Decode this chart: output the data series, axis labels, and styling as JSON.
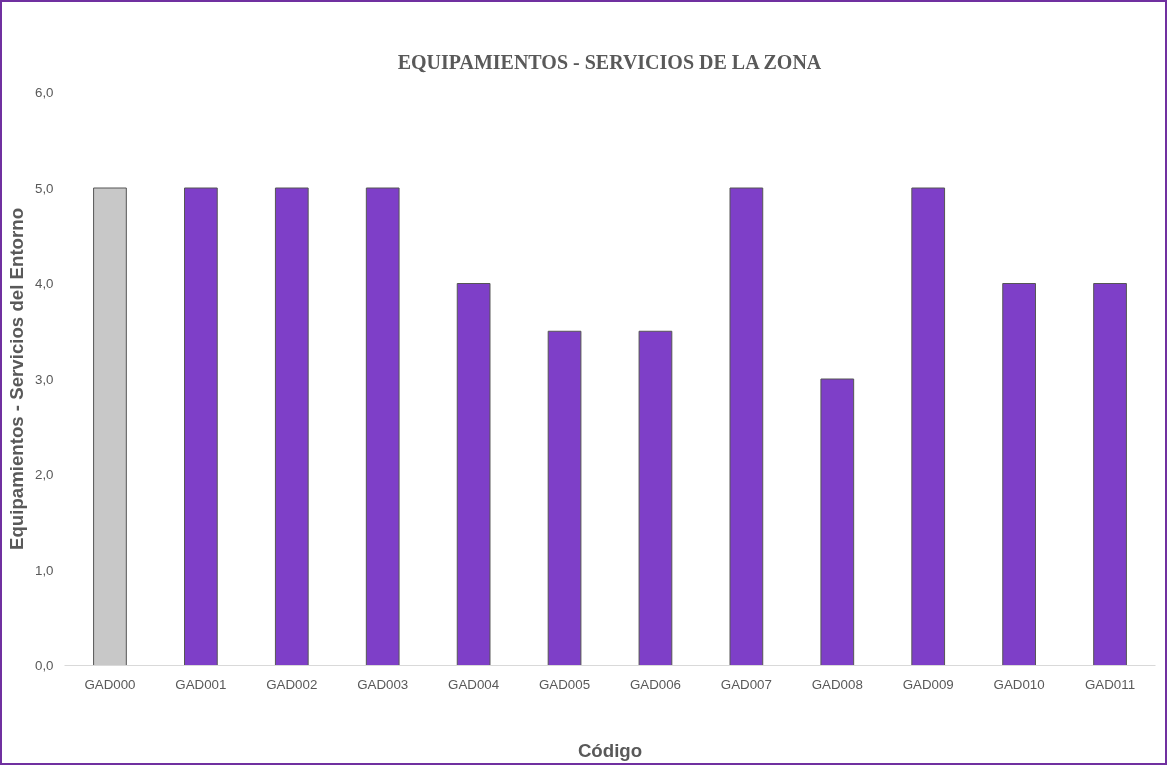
{
  "chart_data": {
    "type": "bar",
    "title": "EQUIPAMIENTOS - SERVICIOS DE LA ZONA",
    "xlabel": "Código",
    "ylabel": "Equipamientos - Servicios del Entorno",
    "categories": [
      "GAD000",
      "GAD001",
      "GAD002",
      "GAD003",
      "GAD004",
      "GAD005",
      "GAD006",
      "GAD007",
      "GAD008",
      "GAD009",
      "GAD010",
      "GAD011"
    ],
    "values": [
      5,
      5,
      5,
      5,
      4,
      3.5,
      3.5,
      5,
      3,
      5,
      4,
      4
    ],
    "colors": [
      "#c8c8c8",
      "#7e3fc8",
      "#7e3fc8",
      "#7e3fc8",
      "#7e3fc8",
      "#7e3fc8",
      "#7e3fc8",
      "#7e3fc8",
      "#7e3fc8",
      "#7e3fc8",
      "#7e3fc8",
      "#7e3fc8"
    ],
    "ylim": [
      0,
      6
    ],
    "yticks": [
      {
        "value": 0,
        "label": "0,0"
      },
      {
        "value": 1,
        "label": "1,0"
      },
      {
        "value": 2,
        "label": "2,0"
      },
      {
        "value": 3,
        "label": "3,0"
      },
      {
        "value": 4,
        "label": "4,0"
      },
      {
        "value": 5,
        "label": "5,0"
      },
      {
        "value": 6,
        "label": "6,0"
      }
    ]
  }
}
